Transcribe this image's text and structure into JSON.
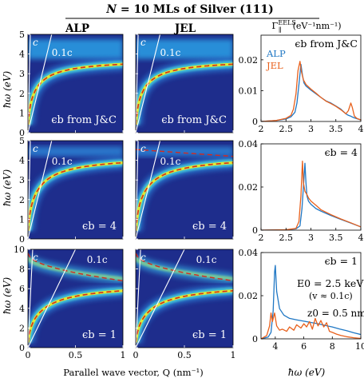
{
  "figure": {
    "title": "N = 10 MLs of Silver (111)",
    "title_italic_part": "N",
    "title_rest": " = 10 MLs of Silver (111)",
    "column_titles": [
      "ALP",
      "JEL"
    ],
    "spectrum_column_title": "Γ∥EELS (eV⁻¹nm⁻¹)",
    "dispersion_ylabel": "ħω (eV)",
    "dispersion_xlabel": "Parallel wave vector, Q (nm⁻¹)",
    "spectrum_xlabel": "ħω (eV)",
    "line_labels": {
      "light_line": "c",
      "slow_line": "0.1c"
    },
    "colors": {
      "map_background": "#1e2d8c",
      "dashed_fit": "#d42a1f",
      "light_line": "#ffffff",
      "alp_spectrum": "#1f77c4",
      "jel_spectrum": "#e8601c"
    }
  },
  "chart_data": [
    {
      "type": "heatmap",
      "row": 1,
      "column": "ALP",
      "panel_label": "ϵb from J&C",
      "xlim": [
        0,
        1
      ],
      "ylim": [
        0,
        5
      ],
      "xticks": [
        "0",
        "0.5",
        "1"
      ],
      "yticks": [
        "0",
        "1",
        "2",
        "3",
        "4",
        "5"
      ],
      "surface_plasmon_asymptote_eV": 3.75,
      "mode_curve_scale": 0.16
    },
    {
      "type": "heatmap",
      "row": 1,
      "column": "JEL",
      "panel_label": "ϵb from J&C",
      "xlim": [
        0,
        1
      ],
      "ylim": [
        0,
        5
      ],
      "xticks": [
        "0",
        "0.5",
        "1"
      ],
      "yticks": [
        "0",
        "1",
        "2",
        "3",
        "4",
        "5"
      ],
      "surface_plasmon_asymptote_eV": 3.75,
      "mode_curve_scale": 0.16
    },
    {
      "type": "heatmap",
      "row": 2,
      "column": "ALP",
      "panel_label": "ϵb = 4",
      "xlim": [
        0,
        1
      ],
      "ylim": [
        0,
        5
      ],
      "xticks": [
        "0",
        "0.5",
        "1"
      ],
      "yticks": [
        "0",
        "1",
        "2",
        "3",
        "4",
        "5"
      ],
      "surface_plasmon_asymptote_eV": 4.25,
      "mode_curve_scale": 0.2
    },
    {
      "type": "heatmap",
      "row": 2,
      "column": "JEL",
      "panel_label": "ϵb = 4",
      "xlim": [
        0,
        1
      ],
      "ylim": [
        0,
        5
      ],
      "xticks": [
        "0",
        "0.5",
        "1"
      ],
      "yticks": [
        "0",
        "1",
        "2",
        "3",
        "4",
        "5"
      ],
      "surface_plasmon_asymptote_eV": 4.25,
      "mode_curve_scale": 0.2
    },
    {
      "type": "heatmap",
      "row": 3,
      "column": "ALP",
      "panel_label": "ϵb = 1",
      "xlim": [
        0,
        1
      ],
      "ylim": [
        0,
        10
      ],
      "xticks": [
        "0",
        "0.5",
        "1"
      ],
      "yticks": [
        "0",
        "2",
        "4",
        "6",
        "8",
        "10"
      ],
      "surface_plasmon_asymptote_eV": 6.6,
      "mode_curve_scale": 0.3
    },
    {
      "type": "heatmap",
      "row": 3,
      "column": "JEL",
      "panel_label": "ϵb = 1",
      "xlim": [
        0,
        1
      ],
      "ylim": [
        0,
        10
      ],
      "xticks": [
        "0",
        "0.5",
        "1"
      ],
      "yticks": [
        "0",
        "2",
        "4",
        "6",
        "8",
        "10"
      ],
      "surface_plasmon_asymptote_eV": 6.6,
      "mode_curve_scale": 0.3
    },
    {
      "type": "line",
      "row": 1,
      "panel_label": "ϵb from J&C",
      "xlim": [
        2,
        4
      ],
      "ylim": [
        0,
        0.028
      ],
      "xticks": [
        "2",
        "2.5",
        "3",
        "3.5",
        "4"
      ],
      "yticks": [
        "0",
        "0.01",
        "0.02"
      ],
      "legend": [
        "ALP",
        "JEL"
      ],
      "legend_position": "top-left",
      "series": [
        {
          "name": "ALP",
          "x": [
            2.0,
            2.3,
            2.5,
            2.6,
            2.68,
            2.72,
            2.76,
            2.8,
            2.83,
            2.86,
            2.9,
            3.0,
            3.1,
            3.2,
            3.3,
            3.4,
            3.5,
            3.6,
            3.7,
            3.75,
            3.8,
            3.85,
            3.9,
            4.0
          ],
          "y": [
            0.0,
            0.0003,
            0.0008,
            0.0015,
            0.003,
            0.006,
            0.012,
            0.0185,
            0.015,
            0.0125,
            0.0115,
            0.0102,
            0.009,
            0.0078,
            0.0067,
            0.006,
            0.005,
            0.004,
            0.0025,
            0.002,
            0.0017,
            0.0013,
            0.001,
            0.0005
          ]
        },
        {
          "name": "JEL",
          "x": [
            2.0,
            2.3,
            2.5,
            2.6,
            2.65,
            2.7,
            2.74,
            2.78,
            2.81,
            2.85,
            2.9,
            3.0,
            3.1,
            3.2,
            3.3,
            3.4,
            3.5,
            3.6,
            3.7,
            3.75,
            3.8,
            3.83,
            3.87,
            3.92,
            4.0
          ],
          "y": [
            0.0,
            0.0003,
            0.001,
            0.002,
            0.004,
            0.009,
            0.0165,
            0.0195,
            0.0162,
            0.0135,
            0.012,
            0.0105,
            0.0092,
            0.0078,
            0.0066,
            0.0058,
            0.0049,
            0.0038,
            0.0025,
            0.0035,
            0.006,
            0.0045,
            0.0018,
            0.001,
            0.0005
          ]
        }
      ]
    },
    {
      "type": "line",
      "row": 2,
      "panel_label": "ϵb = 4",
      "xlim": [
        2,
        4
      ],
      "ylim": [
        0,
        0.04
      ],
      "xticks": [
        "2",
        "2.5",
        "3",
        "3.5",
        "4"
      ],
      "yticks": [
        "0",
        "0.02",
        "0.04"
      ],
      "series": [
        {
          "name": "ALP",
          "x": [
            2.0,
            2.5,
            2.7,
            2.78,
            2.82,
            2.86,
            2.88,
            2.9,
            2.92,
            2.95,
            3.0,
            3.1,
            3.2,
            3.4,
            3.6,
            3.8,
            4.0
          ],
          "y": [
            0.0,
            0.0002,
            0.0006,
            0.002,
            0.01,
            0.024,
            0.031,
            0.022,
            0.016,
            0.0135,
            0.012,
            0.01,
            0.0088,
            0.0068,
            0.005,
            0.0033,
            0.0015
          ]
        },
        {
          "name": "JEL",
          "x": [
            2.0,
            2.5,
            2.7,
            2.76,
            2.8,
            2.83,
            2.85,
            2.88,
            2.92,
            2.95,
            3.0,
            3.1,
            3.2,
            3.4,
            3.6,
            3.8,
            4.0
          ],
          "y": [
            0.0,
            0.0002,
            0.0008,
            0.004,
            0.016,
            0.032,
            0.022,
            0.018,
            0.0165,
            0.015,
            0.0135,
            0.0115,
            0.0095,
            0.0072,
            0.0052,
            0.0034,
            0.0015
          ]
        }
      ]
    },
    {
      "type": "line",
      "row": 3,
      "panel_label": "ϵb = 1",
      "xlim": [
        3,
        10
      ],
      "ylim": [
        0,
        0.04
      ],
      "xticks": [
        "4",
        "6",
        "8",
        "10"
      ],
      "yticks": [
        "0",
        "0.02",
        "0.04"
      ],
      "annotations": [
        "E0 = 2.5 keV",
        "(v ≈ 0.1c)",
        "z0 = 0.5 nm"
      ],
      "series": [
        {
          "name": "ALP",
          "x": [
            3.0,
            3.5,
            3.7,
            3.85,
            3.95,
            4.0,
            4.1,
            4.3,
            4.6,
            5.0,
            5.5,
            6.0,
            6.5,
            7.0,
            7.5,
            8.0,
            8.5,
            9.0,
            9.5,
            10.0
          ],
          "y": [
            0.0,
            0.0008,
            0.003,
            0.013,
            0.031,
            0.034,
            0.022,
            0.014,
            0.011,
            0.0095,
            0.0088,
            0.0082,
            0.0076,
            0.007,
            0.0062,
            0.0055,
            0.0046,
            0.0038,
            0.0028,
            0.002
          ]
        },
        {
          "name": "JEL",
          "x": [
            3.0,
            3.4,
            3.6,
            3.7,
            3.8,
            3.95,
            4.1,
            4.3,
            4.5,
            4.8,
            5.0,
            5.3,
            5.5,
            5.8,
            6.0,
            6.2,
            6.4,
            6.6,
            6.8,
            7.0,
            7.2,
            7.4,
            7.6,
            7.8,
            8.0,
            8.3,
            8.6,
            9.0,
            9.5,
            10.0
          ],
          "y": [
            0.0,
            0.0015,
            0.006,
            0.012,
            0.008,
            0.012,
            0.006,
            0.004,
            0.0045,
            0.0035,
            0.0055,
            0.004,
            0.0065,
            0.005,
            0.007,
            0.0055,
            0.008,
            0.0045,
            0.0095,
            0.006,
            0.0085,
            0.0055,
            0.0075,
            0.0035,
            0.003,
            0.0022,
            0.0016,
            0.001,
            0.0005,
            0.0002
          ]
        }
      ]
    }
  ]
}
